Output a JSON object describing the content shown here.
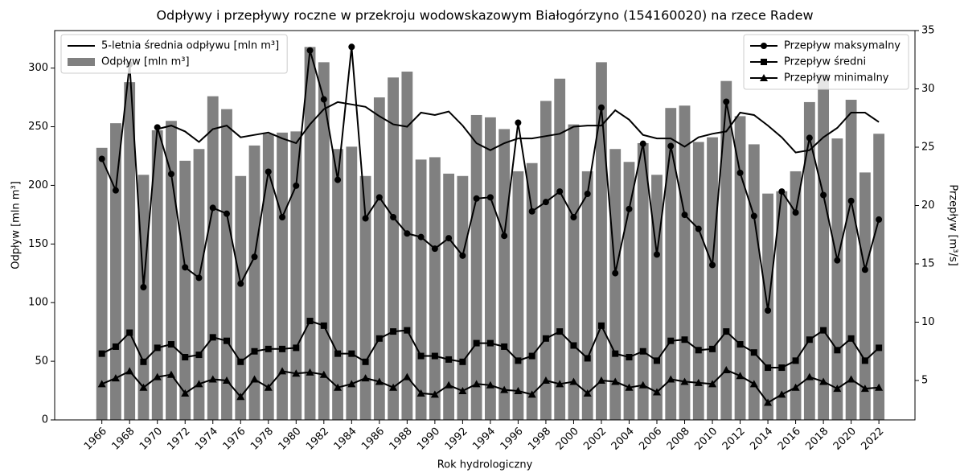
{
  "chart_data": {
    "type": "bar",
    "title": "Odpływy i przepływy roczne w przekroju wodowskazowym Białogórzyno (154160020) na rzece Radew",
    "x_label": "Rok hydrologiczny",
    "y_label": "Odpływ [mln m³]",
    "y2_label": "Przepływ [m³/s]",
    "x": [
      1966,
      1967,
      1968,
      1969,
      1970,
      1971,
      1972,
      1973,
      1974,
      1975,
      1976,
      1977,
      1978,
      1979,
      1980,
      1981,
      1982,
      1983,
      1984,
      1985,
      1986,
      1987,
      1988,
      1989,
      1990,
      1991,
      1992,
      1993,
      1994,
      1995,
      1996,
      1997,
      1998,
      1999,
      2000,
      2001,
      2002,
      2003,
      2004,
      2005,
      2006,
      2007,
      2008,
      2009,
      2010,
      2011,
      2012,
      2013,
      2014,
      2015,
      2016,
      2017,
      2018,
      2019,
      2020,
      2021,
      2022
    ],
    "xlim": [
      1962.6,
      2024.6
    ],
    "xticks": [
      1966,
      1968,
      1970,
      1972,
      1974,
      1976,
      1978,
      1980,
      1982,
      1984,
      1986,
      1988,
      1990,
      1992,
      1994,
      1996,
      1998,
      2000,
      2002,
      2004,
      2006,
      2008,
      2010,
      2012,
      2014,
      2016,
      2018,
      2020,
      2022
    ],
    "ylim": [
      0,
      332
    ],
    "yticks": [
      0,
      50,
      100,
      150,
      200,
      250,
      300
    ],
    "y2lim": [
      1.62,
      35
    ],
    "y2ticks": [
      5,
      10,
      15,
      20,
      25,
      30,
      35
    ],
    "legend": {
      "y": "upper left",
      "y2": "upper right"
    },
    "series": [
      {
        "name": "5-letnia średnia odpływu [mln m³]",
        "type": "line",
        "color": "#000000",
        "marker": "none",
        "values": [
          null,
          null,
          null,
          null,
          248,
          251,
          246,
          237,
          248,
          251,
          241,
          243,
          245,
          240,
          236,
          252,
          265,
          271,
          269,
          267,
          259,
          252,
          250,
          262,
          260,
          263,
          251,
          236,
          230,
          236,
          240,
          240,
          242,
          244,
          250,
          251,
          251,
          264,
          256,
          243,
          240,
          240,
          233,
          241,
          244,
          246,
          262,
          260,
          251,
          241,
          228,
          230,
          241,
          249,
          262,
          262,
          254
        ]
      },
      {
        "name": "Odpływ [mln m³]",
        "type": "bar",
        "color": "#808080",
        "values": [
          232,
          253,
          288,
          209,
          247,
          255,
          221,
          231,
          276,
          265,
          208,
          234,
          244,
          245,
          246,
          318,
          305,
          231,
          233,
          208,
          275,
          292,
          297,
          222,
          224,
          210,
          208,
          260,
          258,
          248,
          212,
          219,
          272,
          291,
          252,
          212,
          305,
          231,
          220,
          236,
          209,
          266,
          268,
          237,
          241,
          289,
          259,
          235,
          193,
          195,
          212,
          271,
          295,
          240,
          273,
          211,
          244
        ]
      },
      {
        "name": "Przepływ maksymalny",
        "type": "line",
        "axis": "y2",
        "color": "#000000",
        "marker": "circle",
        "values": [
          24.0,
          21.3,
          32.1,
          13.0,
          26.7,
          22.7,
          14.7,
          13.8,
          19.8,
          19.3,
          13.3,
          15.6,
          22.9,
          19.0,
          21.7,
          33.3,
          29.1,
          22.2,
          33.6,
          18.9,
          20.7,
          19.0,
          17.6,
          17.3,
          16.3,
          17.2,
          15.7,
          20.6,
          20.7,
          17.4,
          27.1,
          19.5,
          20.3,
          21.2,
          19.0,
          21.0,
          28.4,
          14.2,
          19.7,
          25.3,
          15.8,
          25.1,
          19.2,
          18.0,
          14.9,
          28.9,
          22.8,
          19.1,
          11.0,
          21.2,
          19.4,
          25.8,
          20.9,
          15.3,
          20.4,
          14.5,
          18.8
        ]
      },
      {
        "name": "Przepływ średni",
        "type": "line",
        "axis": "y2",
        "color": "#000000",
        "marker": "square",
        "values": [
          7.3,
          7.9,
          9.1,
          6.6,
          7.8,
          8.1,
          7.0,
          7.2,
          8.7,
          8.4,
          6.6,
          7.5,
          7.7,
          7.7,
          7.8,
          10.1,
          9.7,
          7.3,
          7.3,
          6.6,
          8.6,
          9.2,
          9.3,
          7.1,
          7.1,
          6.8,
          6.6,
          8.2,
          8.2,
          7.9,
          6.7,
          7.1,
          8.6,
          9.2,
          8.0,
          6.9,
          9.7,
          7.3,
          7.0,
          7.5,
          6.7,
          8.4,
          8.5,
          7.6,
          7.7,
          9.2,
          8.1,
          7.4,
          6.1,
          6.1,
          6.7,
          8.5,
          9.3,
          7.6,
          8.6,
          6.7,
          7.8
        ]
      },
      {
        "name": "Przepływ minimalny",
        "type": "line",
        "axis": "y2",
        "color": "#000000",
        "marker": "triangle",
        "values": [
          4.7,
          5.2,
          5.8,
          4.4,
          5.3,
          5.5,
          3.9,
          4.7,
          5.1,
          5.0,
          3.6,
          5.1,
          4.4,
          5.8,
          5.6,
          5.7,
          5.5,
          4.4,
          4.7,
          5.2,
          4.9,
          4.4,
          5.3,
          3.9,
          3.8,
          4.6,
          4.1,
          4.7,
          4.6,
          4.2,
          4.1,
          3.8,
          5.0,
          4.7,
          4.9,
          3.9,
          5.0,
          4.9,
          4.4,
          4.6,
          4.0,
          5.1,
          4.9,
          4.8,
          4.7,
          5.9,
          5.4,
          4.7,
          3.1,
          3.8,
          4.4,
          5.3,
          4.9,
          4.3,
          5.1,
          4.3,
          4.4
        ]
      }
    ]
  }
}
